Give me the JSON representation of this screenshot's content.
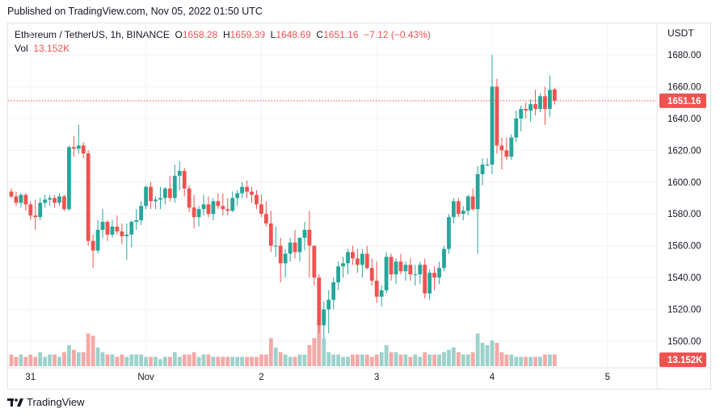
{
  "header": {
    "published": "Published on TradingView.com, Nov 05, 2022 01:50 UTC"
  },
  "legend": {
    "symbol": "Ethereum / TetherUS, 1h, BINANCE",
    "o_label": "O",
    "o_value": "1658.28",
    "h_label": "H",
    "h_value": "1659.39",
    "l_label": "L",
    "l_value": "1648.69",
    "c_label": "C",
    "c_value": "1651.16",
    "change": "−7.12 (−0.43%)",
    "vol_label": "Vol",
    "vol_value": "13.152K"
  },
  "axis": {
    "currency": "USDT"
  },
  "footer": {
    "brand": "TradingView"
  },
  "colors": {
    "up": "#26a69a",
    "down": "#ef5350",
    "up_volume": "#9dd2cc",
    "down_volume": "#f4a9a7",
    "grid": "#f0f3fa",
    "price_line": "#ef5350"
  },
  "chart_data": {
    "type": "candlestick",
    "y_ticks": [
      1500,
      1520,
      1540,
      1560,
      1580,
      1600,
      1620,
      1640,
      1660,
      1680
    ],
    "y_tick_labels": [
      "1500.00",
      "1520.00",
      "1540.00",
      "1560.00",
      "1580.00",
      "1600.00",
      "1620.00",
      "1640.00",
      "1660.00",
      "1680.00"
    ],
    "ylim": [
      1488,
      1690
    ],
    "x_ticks": [
      {
        "label": "31",
        "index": 4
      },
      {
        "label": "Nov",
        "index": 28
      },
      {
        "label": "2",
        "index": 52
      },
      {
        "label": "3",
        "index": 76
      },
      {
        "label": "4",
        "index": 100
      },
      {
        "label": "5",
        "index": 124
      }
    ],
    "last_price": 1651.16,
    "last_price_label": "1651.16",
    "last_volume_label": "13.152K",
    "candles": [
      [
        1594,
        1596,
        1590,
        1591
      ],
      [
        1591,
        1594,
        1585,
        1587
      ],
      [
        1587,
        1593,
        1584,
        1592
      ],
      [
        1592,
        1593,
        1582,
        1586
      ],
      [
        1586,
        1588,
        1576,
        1579
      ],
      [
        1579,
        1589,
        1570,
        1578
      ],
      [
        1578,
        1590,
        1576,
        1587
      ],
      [
        1587,
        1592,
        1584,
        1589
      ],
      [
        1589,
        1592,
        1585,
        1590
      ],
      [
        1590,
        1592,
        1584,
        1587
      ],
      [
        1587,
        1593,
        1585,
        1591
      ],
      [
        1591,
        1592,
        1582,
        1583
      ],
      [
        1583,
        1623,
        1582,
        1622
      ],
      [
        1622,
        1629,
        1616,
        1621
      ],
      [
        1621,
        1636,
        1618,
        1623
      ],
      [
        1623,
        1625,
        1615,
        1618
      ],
      [
        1618,
        1620,
        1560,
        1563
      ],
      [
        1563,
        1567,
        1546,
        1557
      ],
      [
        1557,
        1576,
        1555,
        1570
      ],
      [
        1570,
        1583,
        1565,
        1575
      ],
      [
        1575,
        1576,
        1563,
        1567
      ],
      [
        1567,
        1576,
        1565,
        1572
      ],
      [
        1572,
        1579,
        1567,
        1569
      ],
      [
        1569,
        1574,
        1561,
        1566
      ],
      [
        1566,
        1574,
        1551,
        1567
      ],
      [
        1567,
        1576,
        1559,
        1575
      ],
      [
        1575,
        1583,
        1570,
        1576
      ],
      [
        1576,
        1588,
        1573,
        1585
      ],
      [
        1585,
        1598,
        1583,
        1597
      ],
      [
        1597,
        1600,
        1583,
        1588
      ],
      [
        1588,
        1591,
        1583,
        1589
      ],
      [
        1589,
        1597,
        1583,
        1590
      ],
      [
        1590,
        1597,
        1586,
        1596
      ],
      [
        1596,
        1604,
        1588,
        1590
      ],
      [
        1590,
        1611,
        1587,
        1604
      ],
      [
        1604,
        1613,
        1595,
        1607
      ],
      [
        1607,
        1609,
        1591,
        1596
      ],
      [
        1596,
        1598,
        1581,
        1584
      ],
      [
        1584,
        1592,
        1571,
        1578
      ],
      [
        1578,
        1585,
        1572,
        1583
      ],
      [
        1583,
        1592,
        1579,
        1586
      ],
      [
        1586,
        1591,
        1578,
        1580
      ],
      [
        1580,
        1590,
        1576,
        1588
      ],
      [
        1588,
        1593,
        1583,
        1585
      ],
      [
        1585,
        1593,
        1579,
        1583
      ],
      [
        1583,
        1590,
        1579,
        1582
      ],
      [
        1582,
        1594,
        1581,
        1590
      ],
      [
        1590,
        1595,
        1585,
        1593
      ],
      [
        1593,
        1600,
        1590,
        1597
      ],
      [
        1597,
        1601,
        1590,
        1594
      ],
      [
        1594,
        1597,
        1587,
        1592
      ],
      [
        1592,
        1595,
        1583,
        1586
      ],
      [
        1586,
        1592,
        1578,
        1580
      ],
      [
        1580,
        1588,
        1572,
        1574
      ],
      [
        1574,
        1582,
        1556,
        1560
      ],
      [
        1560,
        1572,
        1553,
        1560
      ],
      [
        1560,
        1565,
        1537,
        1549
      ],
      [
        1549,
        1558,
        1540,
        1555
      ],
      [
        1555,
        1565,
        1550,
        1562
      ],
      [
        1562,
        1570,
        1552,
        1556
      ],
      [
        1556,
        1565,
        1550,
        1565
      ],
      [
        1565,
        1575,
        1557,
        1570
      ],
      [
        1570,
        1582,
        1540,
        1560
      ],
      [
        1560,
        1560,
        1535,
        1540
      ],
      [
        1540,
        1542,
        1505,
        1510
      ],
      [
        1510,
        1525,
        1502,
        1520
      ],
      [
        1520,
        1532,
        1505,
        1526
      ],
      [
        1526,
        1540,
        1520,
        1537
      ],
      [
        1537,
        1550,
        1532,
        1547
      ],
      [
        1547,
        1553,
        1540,
        1549
      ],
      [
        1549,
        1558,
        1542,
        1556
      ],
      [
        1556,
        1560,
        1548,
        1552
      ],
      [
        1552,
        1558,
        1543,
        1548
      ],
      [
        1548,
        1558,
        1540,
        1555
      ],
      [
        1555,
        1560,
        1545,
        1546
      ],
      [
        1546,
        1552,
        1535,
        1538
      ],
      [
        1538,
        1550,
        1524,
        1528
      ],
      [
        1528,
        1535,
        1522,
        1532
      ],
      [
        1532,
        1556,
        1530,
        1553
      ],
      [
        1553,
        1555,
        1538,
        1542
      ],
      [
        1542,
        1552,
        1536,
        1550
      ],
      [
        1550,
        1555,
        1542,
        1544
      ],
      [
        1544,
        1550,
        1538,
        1548
      ],
      [
        1548,
        1552,
        1538,
        1542
      ],
      [
        1542,
        1548,
        1535,
        1542
      ],
      [
        1542,
        1550,
        1536,
        1548
      ],
      [
        1548,
        1552,
        1527,
        1530
      ],
      [
        1530,
        1545,
        1526,
        1543
      ],
      [
        1543,
        1547,
        1532,
        1540
      ],
      [
        1540,
        1550,
        1536,
        1546
      ],
      [
        1546,
        1560,
        1544,
        1558
      ],
      [
        1558,
        1580,
        1555,
        1578
      ],
      [
        1578,
        1590,
        1574,
        1588
      ],
      [
        1588,
        1590,
        1578,
        1580
      ],
      [
        1580,
        1585,
        1576,
        1582
      ],
      [
        1582,
        1592,
        1579,
        1591
      ],
      [
        1591,
        1596,
        1582,
        1583
      ],
      [
        1583,
        1610,
        1555,
        1605
      ],
      [
        1605,
        1615,
        1598,
        1611
      ],
      [
        1611,
        1615,
        1610,
        1611
      ],
      [
        1611,
        1680,
        1605,
        1660
      ],
      [
        1660,
        1665,
        1618,
        1623
      ],
      [
        1623,
        1628,
        1608,
        1620
      ],
      [
        1620,
        1628,
        1614,
        1616
      ],
      [
        1616,
        1630,
        1614,
        1628
      ],
      [
        1628,
        1645,
        1625,
        1640
      ],
      [
        1640,
        1648,
        1632,
        1646
      ],
      [
        1646,
        1650,
        1640,
        1645
      ],
      [
        1645,
        1652,
        1638,
        1649
      ],
      [
        1649,
        1658,
        1642,
        1646
      ],
      [
        1646,
        1656,
        1644,
        1654
      ],
      [
        1654,
        1660,
        1636,
        1646
      ],
      [
        1646,
        1667,
        1641,
        1658
      ],
      [
        1658.28,
        1659.39,
        1648.69,
        1651.16
      ]
    ],
    "volumes": [
      5,
      4,
      5,
      4,
      5,
      4,
      6,
      4,
      5,
      5,
      4,
      6,
      9,
      7,
      6,
      6,
      14,
      13,
      8,
      6,
      5,
      5,
      4,
      5,
      4,
      5,
      5,
      5,
      4,
      4,
      4,
      3,
      4,
      4,
      6,
      4,
      5,
      5,
      6,
      4,
      5,
      5,
      4,
      4,
      4,
      4,
      4,
      4,
      4,
      4,
      4,
      4,
      5,
      5,
      12,
      8,
      6,
      5,
      4,
      4,
      5,
      5,
      9,
      12,
      18,
      12,
      6,
      5,
      5,
      4,
      4,
      5,
      5,
      5,
      5,
      4,
      5,
      6,
      9,
      6,
      6,
      5,
      5,
      4,
      5,
      4,
      6,
      5,
      5,
      5,
      6,
      7,
      8,
      6,
      5,
      5,
      6,
      14,
      10,
      9,
      11,
      10,
      6,
      5,
      5,
      4,
      4,
      4,
      4,
      4,
      4,
      5,
      5,
      5
    ]
  }
}
